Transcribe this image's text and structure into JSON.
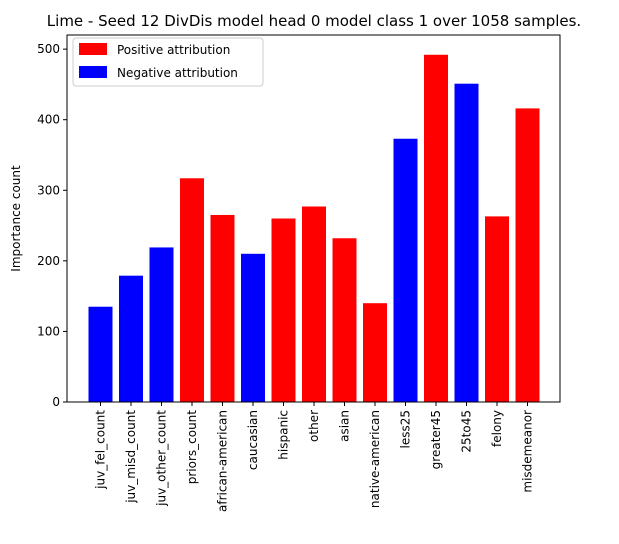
{
  "chart_data": {
    "type": "bar",
    "title": "Lime - Seed 12 DivDis model head 0 model class 1 over 1058 samples.",
    "xlabel": "",
    "ylabel": "Importance count",
    "ylim": [
      0,
      520
    ],
    "yticks": [
      0,
      100,
      200,
      300,
      400,
      500
    ],
    "grid": false,
    "legend_position": "top-left",
    "categories": [
      "juv_fel_count",
      "juv_misd_count",
      "juv_other_count",
      "priors_count",
      "african-american",
      "caucasian",
      "hispanic",
      "other",
      "asian",
      "native-american",
      "less25",
      "greater45",
      "25to45",
      "felony",
      "misdemeanor"
    ],
    "values": [
      135,
      179,
      219,
      317,
      265,
      210,
      260,
      277,
      232,
      140,
      373,
      492,
      451,
      263,
      416
    ],
    "attribution": [
      "negative",
      "negative",
      "negative",
      "positive",
      "positive",
      "negative",
      "positive",
      "positive",
      "positive",
      "positive",
      "negative",
      "positive",
      "negative",
      "positive",
      "positive"
    ],
    "legend": [
      {
        "key": "positive",
        "label": "Positive attribution",
        "color": "#ff0000"
      },
      {
        "key": "negative",
        "label": "Negative attribution",
        "color": "#0000ff"
      }
    ]
  }
}
